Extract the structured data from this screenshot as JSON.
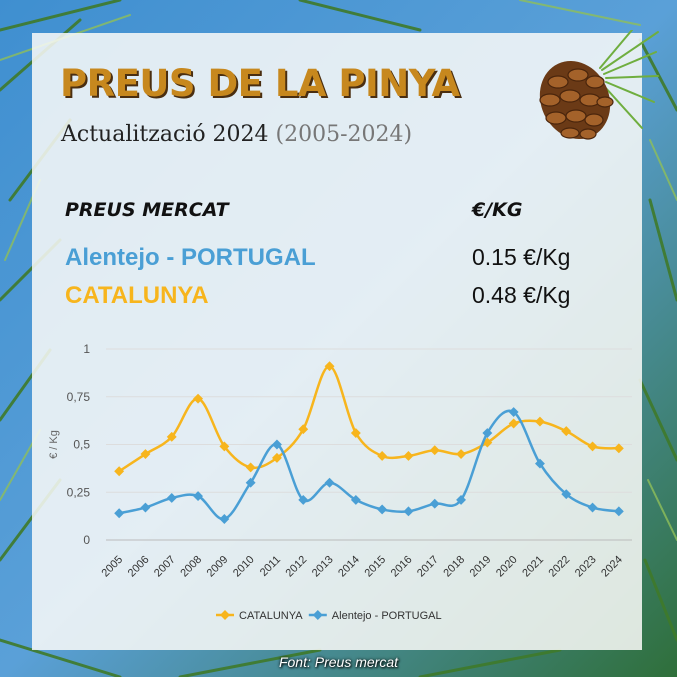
{
  "header": {
    "title": "PREUS DE LA PINYA",
    "subtitle_main": "Actualització 2024",
    "subtitle_range": "(2005-2024)"
  },
  "prices_table": {
    "header_left": "PREUS MERCAT",
    "header_right": "€/KG",
    "rows": [
      {
        "name": "Alentejo - PORTUGAL",
        "value": "0.15 €/Kg"
      },
      {
        "name": "CATALUNYA",
        "value": "0.48 €/Kg"
      }
    ]
  },
  "colors": {
    "catalunya": "#f7b51d",
    "portugal": "#4a9fd5",
    "title": "#c7881e"
  },
  "icons": [
    "pine-cone-icon"
  ],
  "source": "Font: Preus mercat",
  "chart_data": {
    "type": "line",
    "ylabel": "€ / Kg",
    "ylim": [
      0,
      1
    ],
    "yticks": [
      {
        "v": 0,
        "label": "0"
      },
      {
        "v": 0.25,
        "label": "0,25"
      },
      {
        "v": 0.5,
        "label": "0,5"
      },
      {
        "v": 0.75,
        "label": "0,75"
      },
      {
        "v": 1,
        "label": "1"
      }
    ],
    "grid": true,
    "smooth": true,
    "legend_position": "bottom",
    "categories": [
      "2005",
      "2006",
      "2007",
      "2008",
      "2009",
      "2010",
      "2011",
      "2012",
      "2013",
      "2014",
      "2015",
      "2016",
      "2017",
      "2018",
      "2019",
      "2020",
      "2021",
      "2022",
      "2023",
      "2024"
    ],
    "series": [
      {
        "name": "CATALUNYA",
        "color": "#f7b51d",
        "values": [
          0.36,
          0.45,
          0.54,
          0.74,
          0.49,
          0.38,
          0.43,
          0.58,
          0.91,
          0.56,
          0.44,
          0.44,
          0.47,
          0.45,
          0.51,
          0.61,
          0.62,
          0.57,
          0.49,
          0.48
        ]
      },
      {
        "name": "Alentejo - PORTUGAL",
        "color": "#4a9fd5",
        "values": [
          0.14,
          0.17,
          0.22,
          0.23,
          0.11,
          0.3,
          0.5,
          0.21,
          0.3,
          0.21,
          0.16,
          0.15,
          0.19,
          0.21,
          0.56,
          0.67,
          0.4,
          0.24,
          0.17,
          0.15
        ]
      }
    ]
  }
}
